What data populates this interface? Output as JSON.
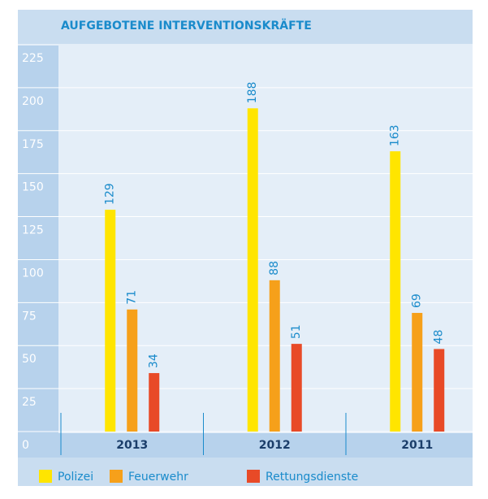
{
  "chart_data": {
    "type": "bar",
    "title": "AUFGEBOTENE INTERVENTIONSKRÄFTE",
    "categories": [
      "2013",
      "2012",
      "2011"
    ],
    "series": [
      {
        "name": "Polizei",
        "color": "#ffe500",
        "values": [
          129,
          188,
          163
        ]
      },
      {
        "name": "Feuerwehr",
        "color": "#f6a01a",
        "values": [
          71,
          88,
          69
        ]
      },
      {
        "name": "Rettungsdienste",
        "color": "#e84a27",
        "values": [
          34,
          51,
          48
        ]
      }
    ],
    "ylim": [
      0,
      225
    ],
    "yticks": [
      0,
      25,
      50,
      75,
      100,
      125,
      150,
      175,
      200,
      225
    ],
    "grid": true
  }
}
